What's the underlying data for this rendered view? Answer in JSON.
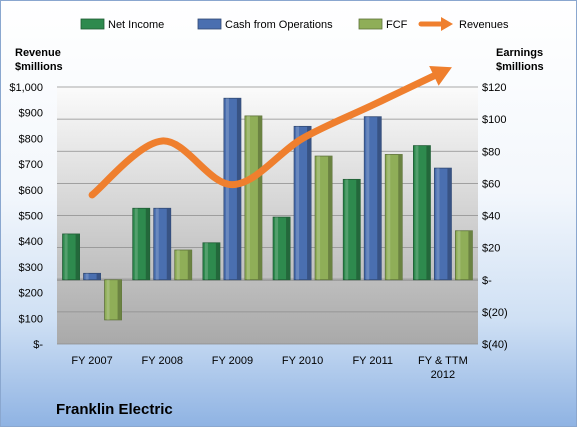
{
  "chart_data": {
    "type": "bar",
    "company_label": "Franklin Electric",
    "left_axis_title_lines": [
      "Revenue",
      "$millions"
    ],
    "right_axis_title_lines": [
      "Earnings",
      "$millions"
    ],
    "categories": [
      [
        "FY 2007"
      ],
      [
        "FY 2008"
      ],
      [
        "FY 2009"
      ],
      [
        "FY 2010"
      ],
      [
        "FY 2011"
      ],
      [
        "FY & TTM",
        "2012"
      ]
    ],
    "left_axis": {
      "ylim": [
        0,
        1000
      ],
      "ticks": [
        0,
        100,
        200,
        300,
        400,
        500,
        600,
        700,
        800,
        900,
        1000
      ],
      "tick_labels": [
        "$-",
        "$100",
        "$200",
        "$300",
        "$400",
        "$500",
        "$600",
        "$700",
        "$800",
        "$900",
        "$1,000"
      ]
    },
    "right_axis": {
      "ylim": [
        -40,
        120
      ],
      "ticks": [
        -40,
        -20,
        0,
        20,
        40,
        60,
        80,
        100,
        120
      ],
      "tick_labels": [
        "$(40)",
        "$(20)",
        "$-",
        "$20",
        "$40",
        "$60",
        "$80",
        "$100",
        "$120"
      ]
    },
    "series": [
      {
        "name": "Net Income",
        "axis": "right",
        "type": "bar",
        "color": "#2e8a4e",
        "values": [
          28.5,
          44.5,
          23,
          39,
          62.5,
          83.5
        ]
      },
      {
        "name": "Cash from Operations",
        "axis": "right",
        "type": "bar",
        "color": "#4a6fb0",
        "values": [
          4,
          44.5,
          113,
          95.5,
          101.5,
          69.5
        ]
      },
      {
        "name": "FCF",
        "axis": "right",
        "type": "bar",
        "color": "#8fae58",
        "values": [
          -25,
          18.5,
          102,
          77,
          78,
          30.5
        ]
      },
      {
        "name": "Revenues",
        "axis": "left",
        "type": "line",
        "color": "#ef7f2e",
        "values": [
          580,
          790,
          620,
          800,
          930,
          1060
        ]
      }
    ],
    "grid": true,
    "legend_position": "top"
  }
}
